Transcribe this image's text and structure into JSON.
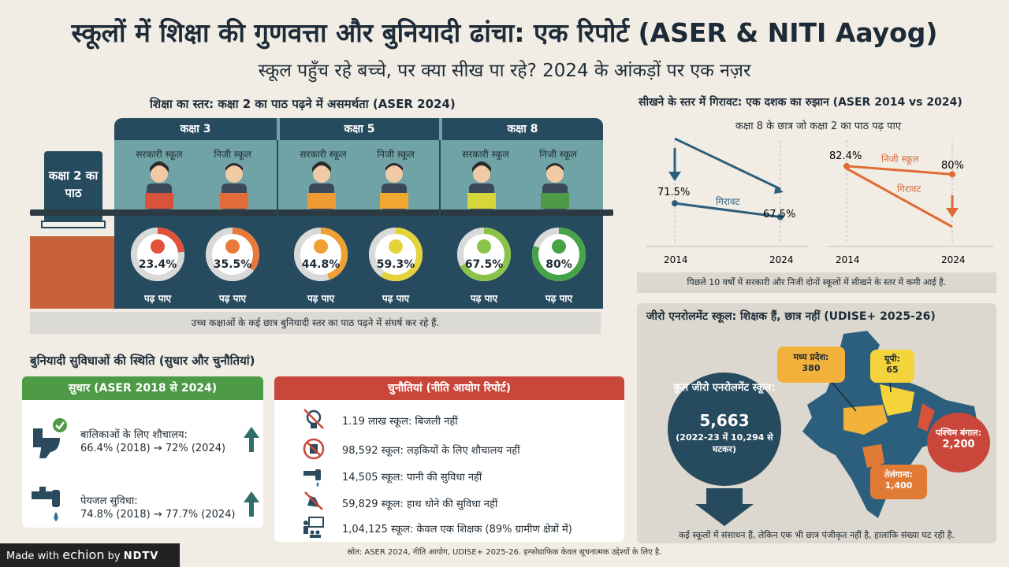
{
  "title": "स्कूलों में शिक्षा की गुणवत्ता और बुनियादी ढांचा: एक रिपोर्ट (ASER & NITI Aayog)",
  "subtitle": "स्कूल पहुँच रहे बच्चे, पर क्या सीख पा रहे? 2024 के आंकड़ों पर एक नज़र",
  "reading": {
    "title": "शिक्षा का स्तर: कक्षा 2 का पाठ पढ़ने में असमर्थता (ASER 2024)",
    "book_label": "कक्षा 2 का पाठ",
    "grades": [
      {
        "label": "कक्षा 3",
        "govt": "सरकारी स्कूल",
        "pvt": "निजी स्कूल",
        "govt_val": "23.4%",
        "pvt_val": "35.5%"
      },
      {
        "label": "कक्षा 5",
        "govt": "सरकारी स्कूल",
        "pvt": "निजी स्कूल",
        "govt_val": "44.8%",
        "pvt_val": "59.3%"
      },
      {
        "label": "कक्षा 8",
        "govt": "सरकारी स्कूल",
        "pvt": "निजी स्कूल",
        "govt_val": "67.5%",
        "pvt_val": "80%"
      }
    ],
    "values": [
      23.4,
      35.5,
      44.8,
      59.3,
      67.5,
      80
    ],
    "colors": [
      "#e2523a",
      "#e8793a",
      "#f0a030",
      "#e4d33a",
      "#8bc34a",
      "#45a348"
    ],
    "read_label": "पढ़ पाए",
    "note": "उच्च कक्षाओं के कई छात्र बुनियादी स्तर का पाठ पढ़ने में संघर्ष कर रहे हैं."
  },
  "trend": {
    "title": "सीखने के स्तर में गिरावट: एक दशक का रुझान (ASER 2014 vs 2024)",
    "subtitle": "कक्षा 8 के छात्र जो कक्षा 2 का पाठ पढ़ पाए",
    "govt": {
      "v2014": "71.5%",
      "v2024": "67.5%",
      "label": "गिरावट"
    },
    "pvt": {
      "v2014": "82.4%",
      "v2024": "80%",
      "name": "निजी स्कूल",
      "label": "गिरावट"
    },
    "x2014": "2014",
    "x2024": "2024",
    "note": "पिछले 10 वर्षों में सरकारी और निजी दोनों स्कूलों में सीखने के स्तर में कमी आई है."
  },
  "chart_data": [
    {
      "type": "line",
      "title": "",
      "x": [
        "2014",
        "2024"
      ],
      "series": [
        {
          "name": "",
          "values": [
            71.5,
            67.5
          ]
        }
      ]
    },
    {
      "type": "line",
      "title": "",
      "x": [
        "2014",
        "2024"
      ],
      "series": [
        {
          "name": "निजी स्कूल",
          "values": [
            82.4,
            80
          ]
        }
      ]
    }
  ],
  "infra": {
    "title": "बुनियादी सुविधाओं की स्थिति (सुधार और चुनौतियां)",
    "improve_head": "सुधार (ASER 2018 से 2024)",
    "improve": [
      {
        "label": "बालिकाओं के लिए शौचालय:",
        "value": "66.4% (2018) → 72% (2024)"
      },
      {
        "label": "पेयजल सुविधा:",
        "value": "74.8% (2018) → 77.7% (2024)"
      }
    ],
    "challenge_head": "चुनौतियां (नीति आयोग रिपोर्ट)",
    "challenges": [
      "1.19 लाख स्कूल: बिजली नहीं",
      "98,592 स्कूल: लड़कियों के लिए शौचालय नहीं",
      "14,505 स्कूल: पानी की सुविधा नहीं",
      "59,829 स्कूल: हाथ धोने की सुविधा नहीं",
      "1,04,125 स्कूल: केवल एक शिक्षक (89% ग्रामीण क्षेत्रों में)"
    ]
  },
  "zero": {
    "title": "जीरो एनरोलमेंट स्कूल: शिक्षक हैं, छात्र नहीं (UDISE+ 2025-26)",
    "total_label": "कुल जीरो एनरोलमेंट स्कूल:",
    "total_value": "5,663",
    "total_note": "(2022-23 में 10,294 से घटकर)",
    "states": [
      {
        "name": "मध्य प्रदेश:",
        "value": "380"
      },
      {
        "name": "यूपी:",
        "value": "65"
      },
      {
        "name": "पश्चिम बंगाल:",
        "value": "2,200"
      },
      {
        "name": "तेलंगाना:",
        "value": "1,400"
      }
    ],
    "note": "कई स्कूलों में संसाधन हैं, लेकिन एक भी छात्र पंजीकृत नहीं है, हालांकि संख्या घट रही है."
  },
  "footer": "स्रोत: ASER 2024, नीति आयोग, UDISE+ 2025-26. इन्फोग्राफिक केवल सूचनात्मक उद्देश्यों के लिए है.",
  "brand": {
    "made": "Made with",
    "echion": "echion",
    "by": "by",
    "ndtv": "NDTV"
  }
}
